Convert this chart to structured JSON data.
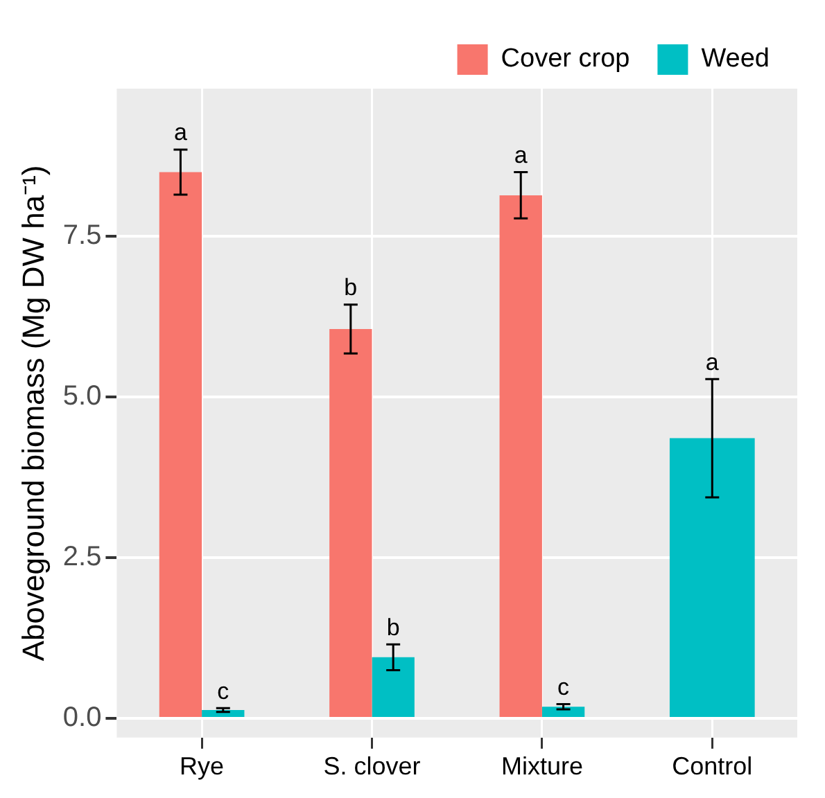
{
  "chart_data": {
    "type": "bar",
    "ylabel": "Aboveground biomass (Mg DW ha⁻¹)",
    "categories": [
      "Rye",
      "S. clover",
      "Mixture",
      "Control"
    ],
    "series": [
      {
        "name": "Cover crop",
        "color": "#f8766d",
        "values": [
          8.5,
          6.06,
          8.14,
          null
        ],
        "errors": [
          0.35,
          0.38,
          0.36,
          null
        ],
        "value_labels": [
          "a",
          "b",
          "a",
          null
        ]
      },
      {
        "name": "Weed",
        "color": "#00bfc4",
        "values": [
          0.13,
          0.95,
          0.18,
          4.36
        ],
        "errors": [
          0.03,
          0.2,
          0.04,
          0.92
        ],
        "value_labels": [
          "c",
          "b",
          "c",
          "a"
        ]
      }
    ],
    "ylim": [
      -0.3,
      9.8
    ],
    "yticks": [
      {
        "value": 0,
        "label": "0.0"
      },
      {
        "value": 2.5,
        "label": "2.5"
      },
      {
        "value": 5,
        "label": "5.0"
      },
      {
        "value": 7.5,
        "label": "7.5"
      }
    ],
    "grid": true,
    "legend": "top right"
  }
}
